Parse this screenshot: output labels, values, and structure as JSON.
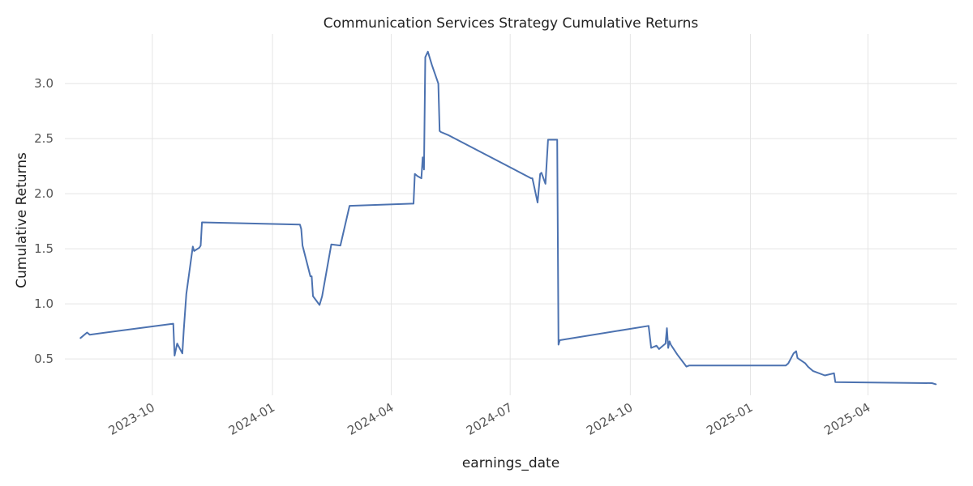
{
  "chart_data": {
    "type": "line",
    "title": "Communication Services Strategy Cumulative Returns",
    "xlabel": "earnings_date",
    "ylabel": "Cumulative Returns",
    "x_ticks": [
      "2023-10",
      "2024-01",
      "2024-04",
      "2024-07",
      "2024-10",
      "2025-01",
      "2025-04"
    ],
    "y_ticks": [
      "0.5",
      "1.0",
      "1.5",
      "2.0",
      "2.5",
      "3.0"
    ],
    "ylim": [
      0.17,
      3.45
    ],
    "xlim": [
      "2023-07-26",
      "2025-06-08"
    ],
    "grid": true,
    "legend": "none",
    "colors": {
      "line": "#4c72b0",
      "grid": "#e5e5e5"
    },
    "series": [
      {
        "x": [
          "2023-08-07",
          "2023-08-12",
          "2023-08-14",
          "2023-10-17",
          "2023-10-18",
          "2023-10-20",
          "2023-10-24",
          "2023-10-25",
          "2023-10-27",
          "2023-11-01",
          "2023-11-02",
          "2023-11-06",
          "2023-11-07",
          "2023-11-08",
          "2024-01-22",
          "2024-01-23",
          "2024-01-24",
          "2024-01-30",
          "2024-01-31",
          "2024-02-01",
          "2024-02-06",
          "2024-02-08",
          "2024-02-15",
          "2024-02-22",
          "2024-02-29",
          "2024-04-18",
          "2024-04-19",
          "2024-04-21",
          "2024-04-24",
          "2024-04-25",
          "2024-04-26",
          "2024-04-27",
          "2024-04-29",
          "2024-05-02",
          "2024-05-07",
          "2024-05-08",
          "2024-05-09",
          "2024-05-15",
          "2024-07-17",
          "2024-07-18",
          "2024-07-22",
          "2024-07-24",
          "2024-07-25",
          "2024-07-28",
          "2024-07-30",
          "2024-07-31",
          "2024-08-06",
          "2024-08-07",
          "2024-08-08",
          "2024-10-15",
          "2024-10-17",
          "2024-10-21",
          "2024-10-23",
          "2024-10-28",
          "2024-10-29",
          "2024-10-30",
          "2024-10-31",
          "2024-11-01",
          "2024-11-06",
          "2024-11-13",
          "2024-11-15",
          "2025-01-28",
          "2025-01-30",
          "2025-02-03",
          "2025-02-05",
          "2025-02-06",
          "2025-02-07",
          "2025-02-12",
          "2025-02-14",
          "2025-02-18",
          "2025-02-27",
          "2025-03-06",
          "2025-03-07",
          "2025-05-20",
          "2025-05-23"
        ],
        "y": [
          0.69,
          0.74,
          0.72,
          0.82,
          0.53,
          0.64,
          0.55,
          0.76,
          1.09,
          1.52,
          1.48,
          1.51,
          1.53,
          1.74,
          1.72,
          1.68,
          1.53,
          1.25,
          1.25,
          1.07,
          0.99,
          1.07,
          1.54,
          1.53,
          1.89,
          1.91,
          2.18,
          2.16,
          2.14,
          2.33,
          2.22,
          3.24,
          3.29,
          3.17,
          3.0,
          2.57,
          2.56,
          2.53,
          2.14,
          2.14,
          1.92,
          2.18,
          2.19,
          2.09,
          2.49,
          2.49,
          2.49,
          0.63,
          0.67,
          0.8,
          0.6,
          0.62,
          0.59,
          0.64,
          0.78,
          0.6,
          0.66,
          0.63,
          0.54,
          0.43,
          0.44,
          0.44,
          0.46,
          0.55,
          0.57,
          0.51,
          0.5,
          0.46,
          0.43,
          0.39,
          0.35,
          0.37,
          0.29,
          0.28,
          0.27
        ]
      }
    ]
  }
}
